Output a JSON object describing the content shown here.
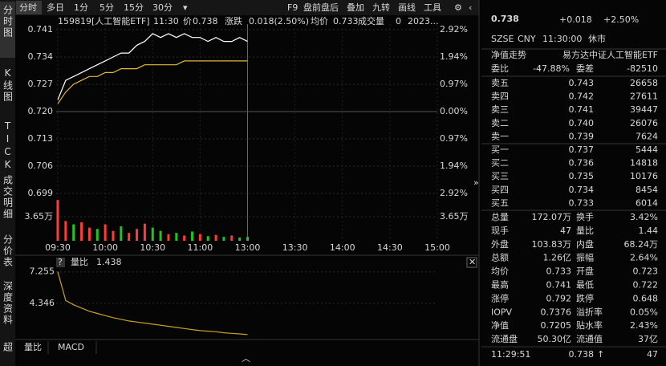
{
  "side_tabs": [
    "分时图",
    "K线图",
    "TICK",
    "成交明细",
    "分价表",
    "深度资料",
    "超"
  ],
  "toolbar": {
    "periods": [
      "分时",
      "多日",
      "1分",
      "5分",
      "15分",
      "30分"
    ],
    "tools": [
      "F9",
      "盘前盘后",
      "叠加",
      "九转",
      "画线",
      "工具"
    ]
  },
  "info_bar": {
    "symbol": "159819[人工智能ETF]",
    "time": "11:30",
    "price_label": "价",
    "price": "0.738",
    "change_label": "涨跌",
    "change": "0.018(2.50%)",
    "avg_label": "均价",
    "avg": "0.733",
    "volume_label": "成交量",
    "volume": "0",
    "date": "2023..."
  },
  "chart_data": [
    {
      "type": "line",
      "x": [
        "09:30",
        "09:35",
        "09:40",
        "09:45",
        "09:50",
        "09:55",
        "10:00",
        "10:05",
        "10:10",
        "10:15",
        "10:20",
        "10:25",
        "10:30",
        "10:35",
        "10:40",
        "10:45",
        "10:50",
        "10:55",
        "11:00",
        "11:05",
        "11:10",
        "11:15",
        "11:20",
        "11:25",
        "11:30"
      ],
      "series": [
        {
          "color": "#ffffff",
          "values": [
            0.723,
            0.728,
            0.729,
            0.73,
            0.731,
            0.732,
            0.733,
            0.734,
            0.735,
            0.735,
            0.737,
            0.738,
            0.74,
            0.739,
            0.74,
            0.739,
            0.74,
            0.739,
            0.739,
            0.738,
            0.739,
            0.738,
            0.738,
            0.739,
            0.738
          ]
        },
        {
          "color": "#e0b83a",
          "values": [
            0.722,
            0.725,
            0.727,
            0.728,
            0.729,
            0.729,
            0.73,
            0.73,
            0.731,
            0.731,
            0.731,
            0.732,
            0.732,
            0.732,
            0.732,
            0.732,
            0.733,
            0.733,
            0.733,
            0.733,
            0.733,
            0.733,
            0.733,
            0.733,
            0.733
          ]
        }
      ],
      "ylim": [
        0.699,
        0.741
      ],
      "yticks": [
        0.741,
        0.734,
        0.727,
        {
          "value": 0.72,
          "label": "0.720"
        },
        0.713,
        0.706,
        0.699
      ],
      "y2lim": [
        -2.92,
        2.92
      ],
      "y2ticks": [
        {
          "value": 2.92,
          "label": "2.92%"
        },
        {
          "value": 1.94,
          "label": "1.94%"
        },
        {
          "value": 0.97,
          "label": "0.97%"
        },
        {
          "value": 0,
          "label": "0.00%"
        },
        {
          "value": -0.97,
          "label": "0.97%"
        },
        {
          "value": -1.94,
          "label": "1.94%"
        },
        {
          "value": -2.92,
          "label": "2.92%"
        }
      ],
      "xticks": [
        "09:30",
        "10:00",
        "10:30",
        "11:00",
        "13:00",
        "13:30",
        "14:00",
        "14:30",
        "15:00"
      ],
      "grid": true
    },
    {
      "type": "bar",
      "x": [
        "09:30",
        "09:35",
        "09:40",
        "09:45",
        "09:50",
        "09:55",
        "10:00",
        "10:05",
        "10:10",
        "10:15",
        "10:20",
        "10:25",
        "10:30",
        "10:35",
        "10:40",
        "10:45",
        "10:50",
        "10:55",
        "11:00",
        "11:05",
        "11:10",
        "11:15",
        "11:20",
        "11:25",
        "11:30"
      ],
      "values": [
        6.2,
        3.0,
        2.5,
        2.8,
        2.0,
        1.8,
        2.5,
        1.5,
        2.2,
        1.2,
        1.8,
        2.6,
        2.0,
        1.5,
        1.0,
        1.2,
        0.8,
        1.4,
        1.0,
        0.7,
        0.9,
        0.6,
        0.8,
        0.5,
        0.6
      ],
      "colors": [
        "#ff3b3b",
        "#ff3b3b",
        "#22c322",
        "#ff3b3b",
        "#ff3b3b",
        "#22c322",
        "#ff3b3b",
        "#ff3b3b",
        "#22c322",
        "#ff3b3b",
        "#ff3b3b",
        "#ff3b3b",
        "#22c322",
        "#22c322",
        "#ff3b3b",
        "#22c322",
        "#ff3b3b",
        "#22c322",
        "#ff3b3b",
        "#22c322",
        "#ff3b3b",
        "#22c322",
        "#ff3b3b",
        "#22c322",
        "#22c322"
      ],
      "ylim": [
        0,
        6.7
      ],
      "yticks": [
        {
          "value": 3.65,
          "label": "3.65万"
        }
      ]
    },
    {
      "type": "line",
      "title": "量比",
      "current": 1.438,
      "x": [
        "09:30",
        "09:35",
        "09:40",
        "09:45",
        "09:50",
        "09:55",
        "10:00",
        "10:05",
        "10:10",
        "10:15",
        "10:20",
        "10:25",
        "10:30",
        "10:35",
        "10:40",
        "10:45",
        "10:50",
        "10:55",
        "11:00",
        "11:05",
        "11:10",
        "11:15",
        "11:20",
        "11:25",
        "11:30"
      ],
      "series": [
        {
          "color": "#c9a227",
          "values": [
            7.255,
            4.6,
            4.2,
            3.9,
            3.6,
            3.4,
            3.2,
            3.0,
            2.85,
            2.7,
            2.6,
            2.5,
            2.4,
            2.3,
            2.2,
            2.1,
            2.0,
            1.9,
            1.8,
            1.75,
            1.7,
            1.6,
            1.55,
            1.5,
            1.438
          ]
        }
      ],
      "ylim": [
        1.2,
        8.5
      ],
      "yticks": [
        7.255,
        4.346
      ]
    }
  ],
  "bottom_tabs": [
    "量比",
    "MACD"
  ],
  "quote": {
    "price": "0.738",
    "change": "+0.018",
    "change_pct": "+2.50%",
    "status": [
      "SZSE",
      "CNY",
      "11:30:00",
      "休市"
    ],
    "nav_trend": "净值走势",
    "fund_name": "易方达中证人工智能ETF",
    "ratio": {
      "label": "委比",
      "value": "-47.88%",
      "diff_label": "委差",
      "diff": "-82510"
    },
    "asks": [
      {
        "label": "卖五",
        "price": "0.743",
        "volume": "26658"
      },
      {
        "label": "卖四",
        "price": "0.742",
        "volume": "27611"
      },
      {
        "label": "卖三",
        "price": "0.741",
        "volume": "39447"
      },
      {
        "label": "卖二",
        "price": "0.740",
        "volume": "26076"
      },
      {
        "label": "卖一",
        "price": "0.739",
        "volume": "7624"
      }
    ],
    "bids": [
      {
        "label": "买一",
        "price": "0.737",
        "volume": "5444"
      },
      {
        "label": "买二",
        "price": "0.736",
        "volume": "14818"
      },
      {
        "label": "买三",
        "price": "0.735",
        "volume": "10176"
      },
      {
        "label": "买四",
        "price": "0.734",
        "volume": "8454"
      },
      {
        "label": "买五",
        "price": "0.733",
        "volume": "6014"
      }
    ],
    "stats": [
      [
        {
          "label": "总量",
          "value": "172.07万",
          "color": "white"
        },
        {
          "label": "换手",
          "value": "3.42%",
          "color": "white"
        }
      ],
      [
        {
          "label": "现手",
          "value": "47",
          "color": "white"
        },
        {
          "label": "量比",
          "value": "1.44",
          "color": "white"
        }
      ],
      [
        {
          "label": "外盘",
          "value": "103.83万",
          "color": "red"
        },
        {
          "label": "内盘",
          "value": "68.24万",
          "color": "green"
        }
      ],
      [
        {
          "label": "总额",
          "value": "1.26亿",
          "color": "white"
        },
        {
          "label": "振幅",
          "value": "2.64%",
          "color": "white"
        }
      ],
      [
        {
          "label": "均价",
          "value": "0.733",
          "color": "red"
        },
        {
          "label": "开盘",
          "value": "0.723",
          "color": "red"
        }
      ],
      [
        {
          "label": "最高",
          "value": "0.741",
          "color": "red"
        },
        {
          "label": "最低",
          "value": "0.722",
          "color": "red"
        }
      ],
      [
        {
          "label": "涨停",
          "value": "0.792",
          "color": "red"
        },
        {
          "label": "跌停",
          "value": "0.648",
          "color": "green"
        }
      ],
      [
        {
          "label": "IOPV",
          "value": "0.7376",
          "color": "white"
        },
        {
          "label": "溢折率",
          "value": "0.05%",
          "color": "red"
        }
      ],
      [
        {
          "label": "净值",
          "value": "0.7205",
          "color": "green"
        },
        {
          "label": "贴水率",
          "value": "2.43%",
          "color": "red"
        }
      ],
      [
        {
          "label": "流通盘",
          "value": "50.30亿",
          "color": "white"
        },
        {
          "label": "流通值",
          "value": "37亿",
          "color": "white"
        }
      ]
    ],
    "last_trade": {
      "time": "11:29:51",
      "price": "0.738",
      "volume": "47"
    }
  }
}
